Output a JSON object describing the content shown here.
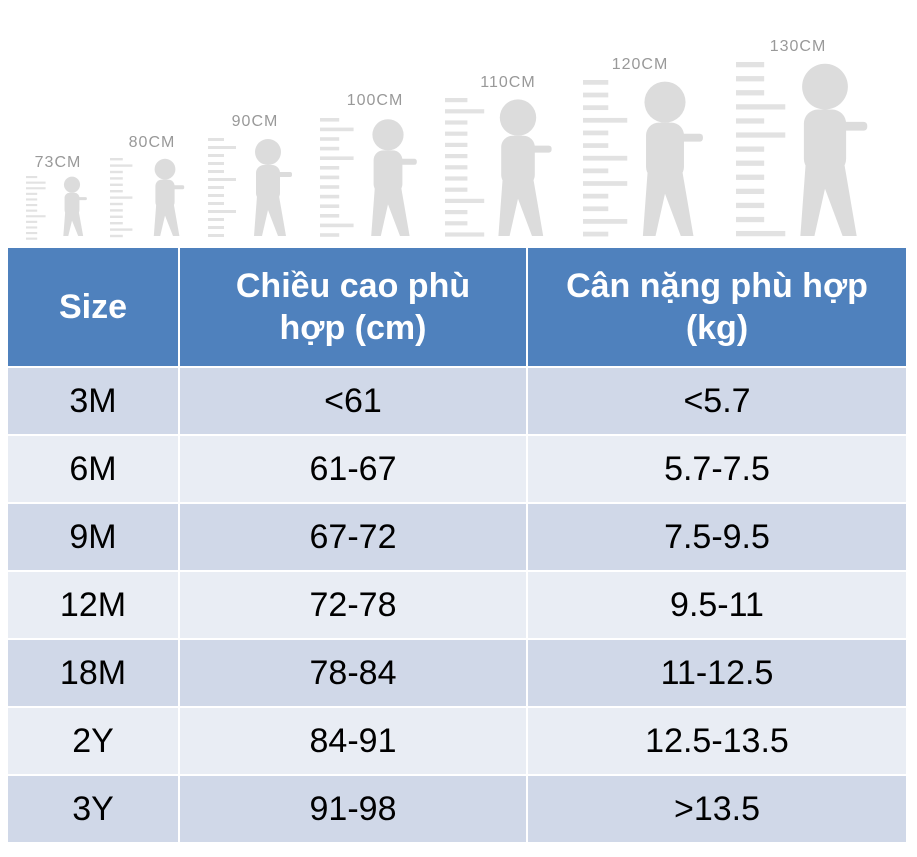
{
  "illustration": {
    "labels": [
      "73CM",
      "80CM",
      "90CM",
      "100CM",
      "110CM",
      "120CM",
      "130CM"
    ]
  },
  "table": {
    "headers": [
      "Size",
      "Chiều cao phù hợp (cm)",
      "Cân nặng phù hợp (kg)"
    ],
    "rows": [
      [
        "3M",
        "<61",
        "<5.7"
      ],
      [
        "6M",
        "61-67",
        "5.7-7.5"
      ],
      [
        "9M",
        "67-72",
        "7.5-9.5"
      ],
      [
        "12M",
        "72-78",
        "9.5-11"
      ],
      [
        "18M",
        "78-84",
        "11-12.5"
      ],
      [
        "2Y",
        "84-91",
        "12.5-13.5"
      ],
      [
        "3Y",
        "91-98",
        ">13.5"
      ]
    ]
  }
}
